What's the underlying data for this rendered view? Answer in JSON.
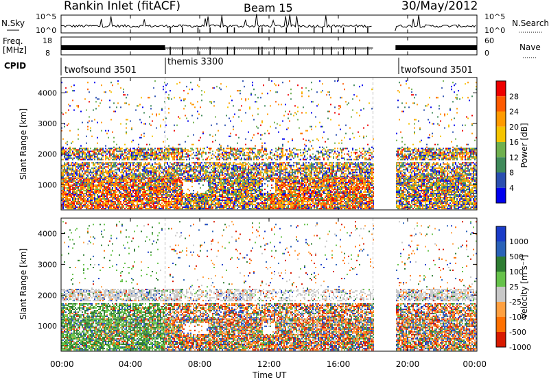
{
  "header": {
    "title": "Rankin Inlet (fitACF)",
    "beam": "Beam 15",
    "date": "30/May/2012"
  },
  "summary_panels": {
    "nsky_label": "N.Sky",
    "nsky_ticks": [
      "10^5",
      "10^0"
    ],
    "nsearch_label": "N.Search",
    "nsearch_ticks": [
      "10^5",
      "10^0"
    ],
    "freq_label_1": "Freq.",
    "freq_label_2": "[MHz]",
    "freq_ticks": [
      "18",
      "8"
    ],
    "nave_label": "Nave",
    "nave_ticks": [
      "60",
      "0"
    ],
    "cpid_label": "CPID",
    "cpid_segments": [
      {
        "name": "twofsound 3501"
      },
      {
        "name": "themis 3300"
      },
      {
        "name": "twofsound 3501"
      }
    ]
  },
  "colors": {
    "power_scale": [
      "#0000ee",
      "#2a4fb0",
      "#3f8a5a",
      "#6fb04e",
      "#f5c400",
      "#ff9a00",
      "#ff5a00",
      "#ee0000"
    ],
    "velocity_scale": [
      "#1a3cc8",
      "#2a62b8",
      "#2e7d32",
      "#66c24a",
      "#c8c8c8",
      "#ffa040",
      "#ff7000",
      "#d81a00"
    ],
    "gap_marker": "#bbbbbb"
  },
  "chart_data": [
    {
      "type": "heatmap",
      "panel": "power",
      "ylabel": "Slant Range [km]",
      "yticks": [
        "1000",
        "2000",
        "3000",
        "4000"
      ],
      "ylim": [
        180,
        4500
      ],
      "colorbar_label": "Power [dB]",
      "colorbar_ticks": [
        "4",
        "8",
        "12",
        "16",
        "20",
        "24",
        "28"
      ],
      "colorbar_range": [
        0,
        30
      ]
    },
    {
      "type": "heatmap",
      "panel": "velocity",
      "ylabel": "Slant Range [km]",
      "yticks": [
        "1000",
        "2000",
        "3000",
        "4000"
      ],
      "ylim": [
        180,
        4500
      ],
      "colorbar_label": "Velocity [m s⁻¹]",
      "colorbar_ticks": [
        "1000",
        "500",
        "100",
        "25",
        "-25",
        "-100",
        "-500",
        "-1000"
      ]
    }
  ],
  "xaxis": {
    "label": "Time UT",
    "ticks": [
      "00:00",
      "04:00",
      "08:00",
      "12:00",
      "16:00",
      "20:00",
      "00:00"
    ],
    "range_hours": [
      0,
      24
    ]
  }
}
